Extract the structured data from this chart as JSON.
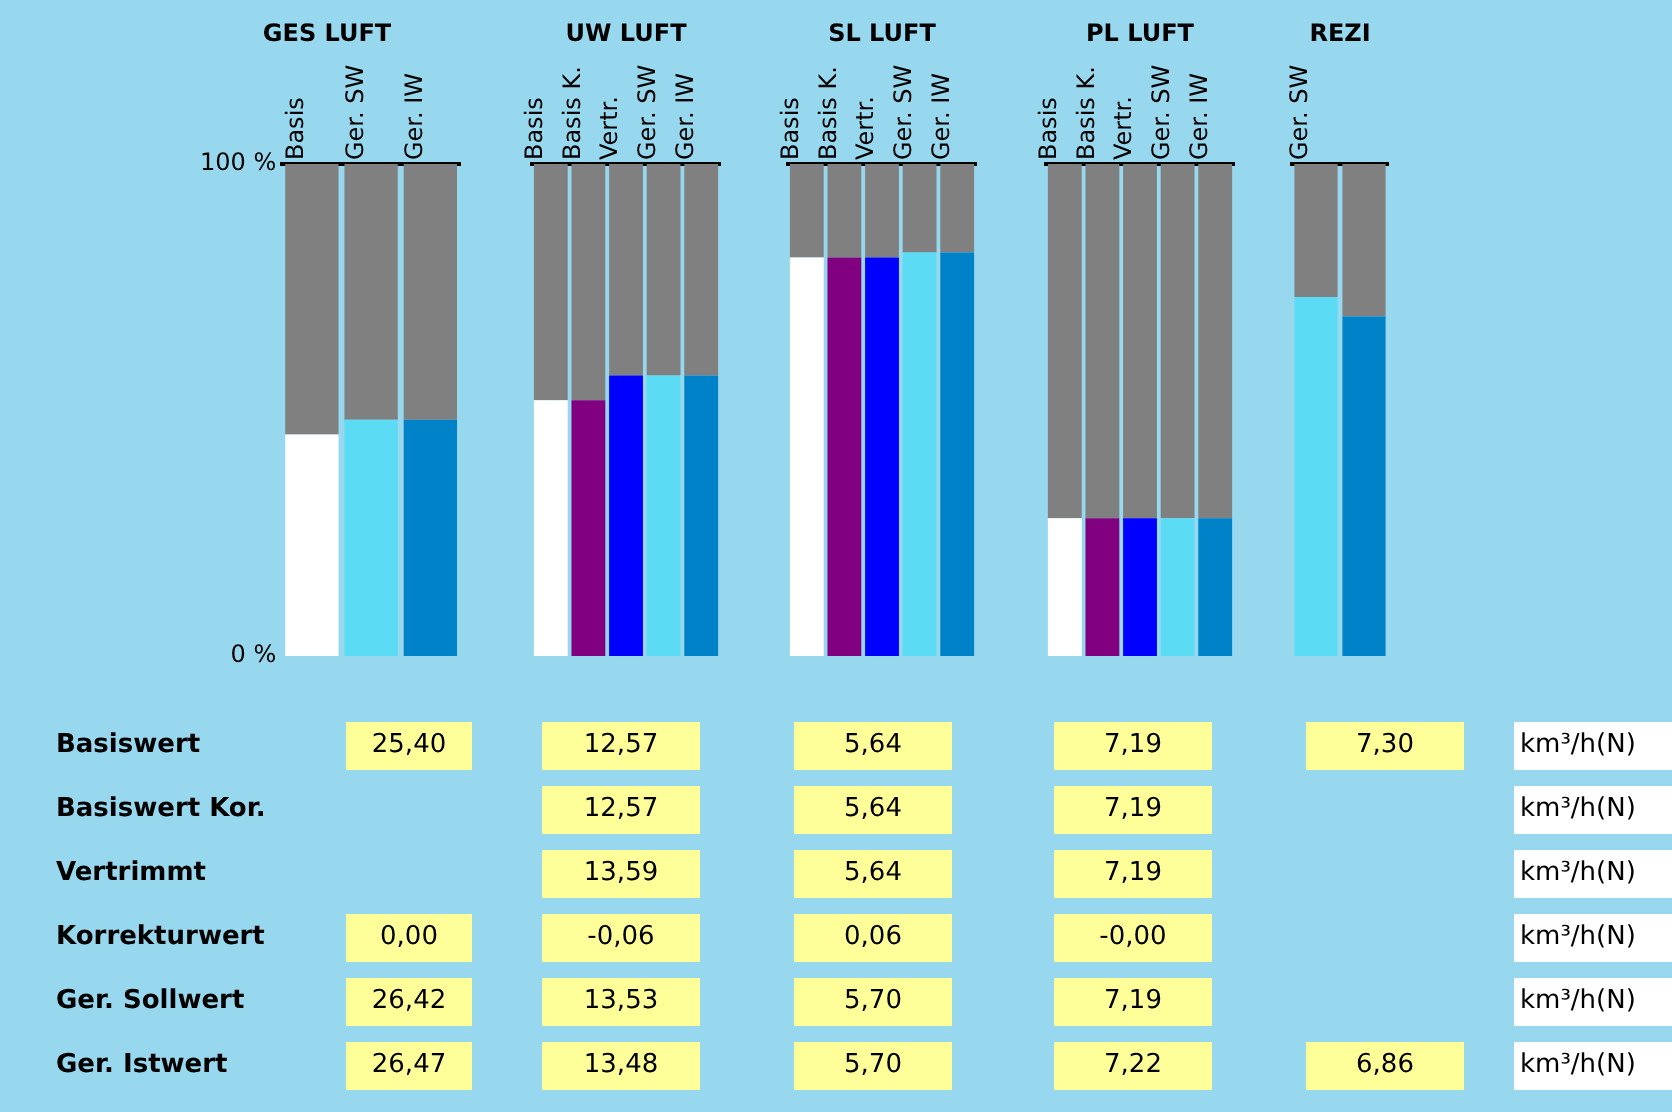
{
  "chart_data": [
    {
      "type": "bar",
      "title": "GES LUFT",
      "categories": [
        "Basis",
        "Ger. SW",
        "Ger. IW"
      ],
      "stacked": true,
      "ylim": [
        0,
        100
      ],
      "yticks": [
        {
          "value": 0,
          "label": "0 %"
        },
        {
          "value": 100,
          "label": "100 %"
        }
      ],
      "series": [
        {
          "colors": [
            "#ffffff",
            "#5bdcf4",
            "#0082c8"
          ],
          "values": [
            45,
            48,
            48
          ]
        },
        {
          "color": "#808080",
          "values": [
            55,
            52,
            52
          ]
        }
      ]
    },
    {
      "type": "bar",
      "title": "UW LUFT",
      "categories": [
        "Basis",
        "Basis K.",
        "Vertr.",
        "Ger. SW",
        "Ger. IW"
      ],
      "stacked": true,
      "ylim": [
        0,
        100
      ],
      "tick_labels": "x",
      "series": [
        {
          "colors": [
            "#ffffff",
            "#800080",
            "#0000ff",
            "#5bdcf4",
            "#0082c8"
          ],
          "values": [
            52,
            52,
            57,
            57,
            57
          ]
        },
        {
          "color": "#808080",
          "values": [
            48,
            48,
            43,
            43,
            43
          ]
        }
      ]
    },
    {
      "type": "bar",
      "title": "SL LUFT",
      "categories": [
        "Basis",
        "Basis K.",
        "Vertr.",
        "Ger. SW",
        "Ger. IW"
      ],
      "stacked": true,
      "ylim": [
        0,
        100
      ],
      "tick_labels": "x",
      "series": [
        {
          "colors": [
            "#ffffff",
            "#800080",
            "#0000ff",
            "#5bdcf4",
            "#0082c8"
          ],
          "values": [
            81,
            81,
            81,
            82,
            82
          ]
        },
        {
          "color": "#808080",
          "values": [
            19,
            19,
            19,
            18,
            18
          ]
        }
      ]
    },
    {
      "type": "bar",
      "title": "PL LUFT",
      "categories": [
        "Basis",
        "Basis K.",
        "Vertr.",
        "Ger. SW",
        "Ger. IW"
      ],
      "stacked": true,
      "ylim": [
        0,
        100
      ],
      "tick_labels": "x",
      "series": [
        {
          "colors": [
            "#ffffff",
            "#800080",
            "#0000ff",
            "#5bdcf4",
            "#0082c8"
          ],
          "values": [
            28,
            28,
            28,
            28,
            28
          ]
        },
        {
          "color": "#808080",
          "values": [
            72,
            72,
            72,
            72,
            72
          ]
        }
      ]
    },
    {
      "type": "bar",
      "title": "REZI",
      "categories": [
        "Ger. SW",
        null
      ],
      "stacked": true,
      "ylim": [
        0,
        100
      ],
      "tick_labels": "x",
      "series": [
        {
          "colors": [
            "#5bdcf4",
            "#0082c8"
          ],
          "values": [
            73,
            69
          ]
        },
        {
          "color": "#808080",
          "values": [
            27,
            31
          ]
        }
      ]
    },
    {
      "type": "other",
      "y_categories": [
        "Basiswert",
        "Basiswert Kor.",
        "Vertrimmt",
        "Korrekturwert",
        "Ger. Sollwert",
        "Ger. Istwert"
      ],
      "cell_labels": [
        [
          "25,40",
          "12,57",
          "5,64",
          "7,19",
          "7,30",
          "km³/h(N)"
        ],
        [
          null,
          "12,57",
          "5,64",
          "7,19",
          null,
          "km³/h(N)"
        ],
        [
          null,
          "13,59",
          "5,64",
          "7,19",
          null,
          "km³/h(N)"
        ],
        [
          "0,00",
          "-0,06",
          "0,06",
          "-0,00",
          null,
          "km³/h(N)"
        ],
        [
          "26,42",
          "13,53",
          "5,70",
          "7,19",
          null,
          "km³/h(N)"
        ],
        [
          "26,47",
          "13,48",
          "5,70",
          "7,22",
          "6,86",
          "km³/h(N)"
        ]
      ]
    }
  ]
}
